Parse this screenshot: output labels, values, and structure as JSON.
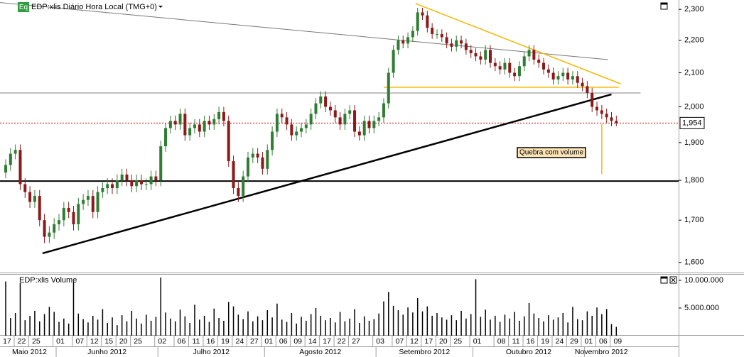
{
  "chart_data": [
    {
      "type": "candlestick",
      "badge": "Eq",
      "title": "EDP:xlis Diário Hora Local (TMG+0)",
      "log": true,
      "ylim": [
        1577,
        2331
      ],
      "yticks": [
        {
          "value": 1600,
          "label": "1,600"
        },
        {
          "value": 1700,
          "label": "1,700"
        },
        {
          "value": 1800,
          "label": "1,800"
        },
        {
          "value": 1900,
          "label": "1,900"
        },
        {
          "value": 2000,
          "label": "2,000"
        },
        {
          "value": 2100,
          "label": "2,100"
        },
        {
          "value": 2200,
          "label": "2,200"
        },
        {
          "value": 2300,
          "label": "2,300"
        }
      ],
      "up_color": "#2e7d32",
      "down_color": "#8b1a1a",
      "open": [
        1820,
        1840,
        1870,
        1880,
        1790,
        1770,
        1745,
        1760,
        1700,
        1660,
        1670,
        1690,
        1700,
        1730,
        1720,
        1690,
        1740,
        1750,
        1760,
        1720,
        1770,
        1780,
        1790,
        1780,
        1800,
        1815,
        1800,
        1785,
        1800,
        1790,
        1790,
        1810,
        1800,
        1890,
        1940,
        1960,
        1950,
        1980,
        1920,
        1940,
        1950,
        1930,
        1960,
        1950,
        1965,
        1985,
        1960,
        1850,
        1780,
        1760,
        1810,
        1860,
        1870,
        1860,
        1830,
        1880,
        1930,
        1980,
        1970,
        1950,
        1920,
        1930,
        1940,
        1950,
        1980,
        2010,
        2030,
        2000,
        1990,
        1970,
        1950,
        1980,
        1990,
        1930,
        1920,
        1960,
        1940,
        1960,
        1970,
        2010,
        2100,
        2170,
        2200,
        2190,
        2210,
        2230,
        2290,
        2280,
        2240,
        2220,
        2220,
        2210,
        2190,
        2180,
        2200,
        2190,
        2170,
        2160,
        2150,
        2140,
        2170,
        2130,
        2120,
        2110,
        2130,
        2100,
        2090,
        2120,
        2150,
        2170,
        2140,
        2130,
        2110,
        2100,
        2080,
        2090,
        2100,
        2080,
        2090,
        2070,
        2060,
        2040,
        2000,
        1990,
        1980,
        1970,
        1960
      ],
      "high": [
        1855,
        1885,
        1895,
        1895,
        1805,
        1785,
        1775,
        1775,
        1715,
        1685,
        1705,
        1715,
        1745,
        1745,
        1735,
        1755,
        1765,
        1775,
        1775,
        1785,
        1795,
        1805,
        1805,
        1815,
        1830,
        1830,
        1815,
        1815,
        1815,
        1805,
        1825,
        1825,
        1905,
        1955,
        1975,
        1975,
        1995,
        1995,
        1955,
        1965,
        1965,
        1975,
        1975,
        1980,
        2000,
        2000,
        1975,
        1865,
        1795,
        1825,
        1875,
        1885,
        1885,
        1875,
        1895,
        1945,
        1995,
        1995,
        1985,
        1965,
        1945,
        1955,
        1965,
        1995,
        2025,
        2045,
        2045,
        2015,
        2005,
        1985,
        1995,
        2005,
        2005,
        1945,
        1975,
        1975,
        1975,
        1985,
        2025,
        2115,
        2185,
        2215,
        2215,
        2225,
        2245,
        2305,
        2305,
        2295,
        2255,
        2235,
        2235,
        2225,
        2205,
        2215,
        2215,
        2205,
        2185,
        2175,
        2165,
        2185,
        2185,
        2145,
        2135,
        2145,
        2145,
        2115,
        2135,
        2165,
        2185,
        2185,
        2155,
        2145,
        2125,
        2115,
        2105,
        2115,
        2115,
        2105,
        2105,
        2085,
        2075,
        2055,
        2015,
        2005,
        1995,
        1985,
        1975
      ],
      "low": [
        1805,
        1825,
        1855,
        1775,
        1755,
        1730,
        1730,
        1685,
        1645,
        1645,
        1655,
        1675,
        1685,
        1705,
        1675,
        1675,
        1725,
        1735,
        1705,
        1705,
        1755,
        1765,
        1765,
        1765,
        1785,
        1785,
        1770,
        1770,
        1775,
        1775,
        1775,
        1785,
        1785,
        1875,
        1925,
        1935,
        1935,
        1905,
        1905,
        1925,
        1915,
        1915,
        1935,
        1935,
        1950,
        1945,
        1835,
        1765,
        1745,
        1745,
        1795,
        1845,
        1845,
        1815,
        1815,
        1865,
        1915,
        1955,
        1935,
        1905,
        1905,
        1915,
        1925,
        1935,
        1965,
        1995,
        1985,
        1975,
        1955,
        1935,
        1935,
        1965,
        1915,
        1905,
        1905,
        1925,
        1925,
        1945,
        1955,
        1995,
        2085,
        2155,
        2175,
        2175,
        2195,
        2215,
        2265,
        2225,
        2205,
        2205,
        2195,
        2175,
        2165,
        2165,
        2175,
        2155,
        2145,
        2135,
        2125,
        2125,
        2115,
        2105,
        2095,
        2095,
        2085,
        2075,
        2075,
        2105,
        2135,
        2125,
        2115,
        2095,
        2085,
        2065,
        2065,
        2075,
        2065,
        2065,
        2055,
        2045,
        2025,
        1985,
        1975,
        1965,
        1955,
        1945,
        1945
      ],
      "close": [
        1840,
        1870,
        1880,
        1790,
        1770,
        1745,
        1760,
        1700,
        1660,
        1670,
        1690,
        1700,
        1730,
        1720,
        1690,
        1740,
        1750,
        1760,
        1720,
        1770,
        1780,
        1790,
        1780,
        1800,
        1815,
        1800,
        1785,
        1800,
        1790,
        1790,
        1810,
        1800,
        1890,
        1940,
        1960,
        1950,
        1980,
        1920,
        1940,
        1950,
        1930,
        1960,
        1950,
        1965,
        1985,
        1960,
        1850,
        1780,
        1760,
        1810,
        1860,
        1870,
        1860,
        1830,
        1880,
        1930,
        1980,
        1970,
        1950,
        1920,
        1930,
        1940,
        1950,
        1980,
        2010,
        2030,
        2000,
        1990,
        1970,
        1950,
        1980,
        1990,
        1930,
        1920,
        1960,
        1940,
        1960,
        1970,
        2010,
        2100,
        2170,
        2200,
        2190,
        2210,
        2230,
        2290,
        2280,
        2240,
        2220,
        2220,
        2210,
        2190,
        2180,
        2200,
        2190,
        2170,
        2160,
        2150,
        2140,
        2170,
        2130,
        2120,
        2110,
        2130,
        2100,
        2090,
        2120,
        2150,
        2170,
        2140,
        2130,
        2110,
        2100,
        2080,
        2090,
        2100,
        2080,
        2090,
        2070,
        2060,
        2040,
        2000,
        1990,
        1980,
        1970,
        1960,
        1954
      ],
      "last_price": {
        "value": 1954,
        "label": "1,954",
        "color": "#cc0000"
      },
      "levels": [
        {
          "value": 1798,
          "color": "#000000",
          "width": 2
        }
      ],
      "trendlines": [
        {
          "color": "#000000",
          "width": 2.5,
          "points": [
            [
              7.6,
              1621
            ],
            [
              125,
              2036
            ]
          ]
        },
        {
          "color": "#777777",
          "width": 1,
          "points": [
            [
              -1.5,
              2323
            ],
            [
              124.3,
              2140
            ]
          ]
        },
        {
          "color": "#808080",
          "width": 1,
          "points": [
            [
              -1.2,
              2040
            ],
            [
              131,
              2040
            ]
          ]
        },
        {
          "color": "#f5b800",
          "width": 1.5,
          "points": [
            [
              84.6,
              2319
            ],
            [
              126.9,
              2067
            ]
          ]
        },
        {
          "color": "#f5b800",
          "width": 1.5,
          "points": [
            [
              78,
              2057
            ],
            [
              126.5,
              2057
            ]
          ]
        },
        {
          "color": "#f5b800",
          "width": 1.5,
          "points": [
            [
              123,
              1951
            ],
            [
              123,
              1816
            ]
          ]
        }
      ],
      "annotation": "Quebra com volume"
    },
    {
      "type": "bar",
      "title": "EDP:xlis Volume",
      "color": "#000000",
      "ylim": [
        0,
        11150000
      ],
      "yticks": [
        {
          "value": 5000000,
          "label": "5.000.000"
        },
        {
          "value": 10000000,
          "label": "10.000.000"
        }
      ],
      "values": [
        9800000,
        3200000,
        4100000,
        9500000,
        2800000,
        3600000,
        4500000,
        2600000,
        3900000,
        5200000,
        4300000,
        2500000,
        3100000,
        2200000,
        9700000,
        4000000,
        3000000,
        2400000,
        3600000,
        2900000,
        4800000,
        2300000,
        3300000,
        1900000,
        3700000,
        2600000,
        4500000,
        3100000,
        2200000,
        3800000,
        2700000,
        3400000,
        10500000,
        4200000,
        3100000,
        2600000,
        4700000,
        3500000,
        2300000,
        5600000,
        2900000,
        3600000,
        2500000,
        4900000,
        3200000,
        2700000,
        6100000,
        5300000,
        3800000,
        3000000,
        4400000,
        2600000,
        3500000,
        2800000,
        4600000,
        3300000,
        5800000,
        2900000,
        2500000,
        4100000,
        2200000,
        3400000,
        2700000,
        3900000,
        5000000,
        3600000,
        2800000,
        3200000,
        2400000,
        4300000,
        2600000,
        3100000,
        4800000,
        2300000,
        3500000,
        2700000,
        3000000,
        4000000,
        6200000,
        7900000,
        5400000,
        4600000,
        3800000,
        5100000,
        4200000,
        6800000,
        4400000,
        5300000,
        3600000,
        4100000,
        3300000,
        2900000,
        3700000,
        2800000,
        4500000,
        3100000,
        3900000,
        10200000,
        3400000,
        4700000,
        2900000,
        3600000,
        2500000,
        3800000,
        3100000,
        4300000,
        2700000,
        3500000,
        5900000,
        4000000,
        3200000,
        2600000,
        3700000,
        2900000,
        3300000,
        4100000,
        2400000,
        5200000,
        3000000,
        2800000,
        4400000,
        3600000,
        5100000,
        3900000,
        4800000,
        2100000,
        1600000
      ],
      "months": [
        {
          "name": "Maio 2012",
          "days": [
            "17",
            null,
            null,
            "22",
            null,
            null,
            "25",
            null,
            null,
            null,
            null
          ]
        },
        {
          "name": "Junho 2012",
          "days": [
            "01",
            null,
            null,
            null,
            "07",
            null,
            null,
            "12",
            null,
            null,
            "15",
            null,
            null,
            "20",
            null,
            null,
            "25",
            null,
            null,
            null,
            null
          ]
        },
        {
          "name": "Julho 2012",
          "days": [
            "02",
            null,
            null,
            null,
            "06",
            null,
            null,
            "11",
            null,
            null,
            "16",
            null,
            null,
            "19",
            null,
            null,
            "24",
            null,
            null,
            "27",
            null,
            null
          ]
        },
        {
          "name": "Agosto 2012",
          "days": [
            "01",
            null,
            null,
            "06",
            null,
            null,
            "09",
            null,
            null,
            "14",
            null,
            null,
            "17",
            null,
            null,
            "22",
            null,
            null,
            "27",
            null,
            null,
            null,
            null
          ]
        },
        {
          "name": "Setembro 2012",
          "days": [
            "03",
            null,
            null,
            null,
            "07",
            null,
            null,
            "12",
            null,
            null,
            "17",
            null,
            null,
            "20",
            null,
            null,
            "25",
            null,
            null,
            null
          ]
        },
        {
          "name": "Outubro 2012",
          "days": [
            "01",
            null,
            null,
            null,
            null,
            "08",
            null,
            null,
            "11",
            null,
            null,
            "16",
            null,
            null,
            "19",
            null,
            null,
            "24",
            null,
            null,
            "29",
            null,
            null
          ]
        },
        {
          "name": "Novembro 2012",
          "days": [
            "01",
            null,
            null,
            "06",
            null,
            null,
            "09"
          ]
        }
      ]
    }
  ]
}
